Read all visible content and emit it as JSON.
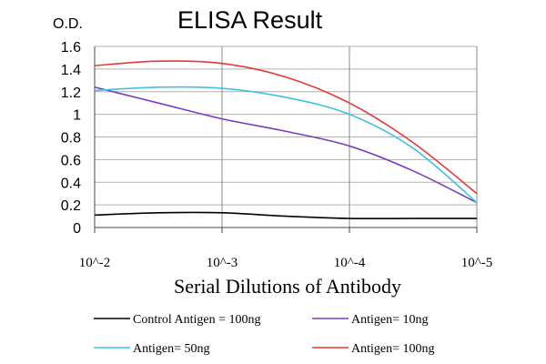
{
  "chart_data": {
    "type": "line",
    "title": "ELISA Result",
    "ylabel": "O.D.",
    "xlabel": "Serial Dilutions of Antibody",
    "x": [
      "10^-2",
      "10^-3",
      "10^-4",
      "10^-5"
    ],
    "ylim": [
      0,
      1.6
    ],
    "yticks": [
      "0",
      "0.2",
      "0.4",
      "0.6",
      "0.8",
      "1",
      "1.2",
      "1.4",
      "1.6"
    ],
    "grid": "horizontal",
    "legend_placement": "bottom",
    "series": [
      {
        "name": "Control Antigen = 100ng",
        "color": "#000000",
        "points": [
          [
            0,
            0.11
          ],
          [
            0.5,
            0.13
          ],
          [
            1,
            0.13
          ],
          [
            1.5,
            0.1
          ],
          [
            2,
            0.08
          ],
          [
            2.5,
            0.08
          ],
          [
            3,
            0.08
          ]
        ]
      },
      {
        "name": "Antigen= 10ng",
        "color": "#7b3fbe",
        "points": [
          [
            0,
            1.24
          ],
          [
            0.5,
            1.1
          ],
          [
            1,
            0.96
          ],
          [
            1.5,
            0.85
          ],
          [
            2,
            0.72
          ],
          [
            2.5,
            0.5
          ],
          [
            3,
            0.22
          ]
        ]
      },
      {
        "name": "Antigen= 50ng",
        "color": "#3ec1e6",
        "points": [
          [
            0,
            1.21
          ],
          [
            0.5,
            1.24
          ],
          [
            1,
            1.23
          ],
          [
            1.5,
            1.15
          ],
          [
            2,
            1.0
          ],
          [
            2.5,
            0.7
          ],
          [
            3,
            0.22
          ]
        ]
      },
      {
        "name": "Antigen= 100ng",
        "color": "#e53935",
        "points": [
          [
            0,
            1.43
          ],
          [
            0.5,
            1.47
          ],
          [
            1,
            1.45
          ],
          [
            1.5,
            1.33
          ],
          [
            2,
            1.1
          ],
          [
            2.5,
            0.75
          ],
          [
            3,
            0.3
          ]
        ]
      }
    ]
  }
}
